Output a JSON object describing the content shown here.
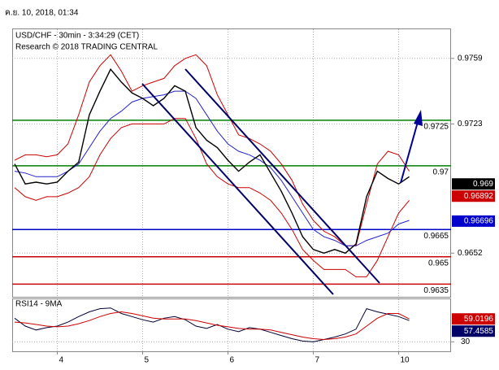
{
  "header": {
    "timestamp": "ค.ย. 10, 2018, 01:34"
  },
  "chart_data": [
    {
      "type": "line",
      "title": "USD/CHF - 30min - 3:34:29 (CET)",
      "subtitle": "Research © 2018 TRADING CENTRAL",
      "ylim": [
        0.9628,
        0.9775
      ],
      "yticks": [
        0.9759,
        0.9723,
        0.9652
      ],
      "grid": true,
      "series": [
        {
          "color": "#cc0000",
          "values": [
            0.9703,
            0.9706,
            0.9706,
            0.9705,
            0.9706,
            0.9712,
            0.9728,
            0.9746,
            0.9755,
            0.9761,
            0.9752,
            0.9741,
            0.9744,
            0.9746,
            0.9748,
            0.9755,
            0.9759,
            0.9761,
            0.9755,
            0.9739,
            0.9728,
            0.9717,
            0.9715,
            0.9712,
            0.9708,
            0.9701,
            0.9692,
            0.9679,
            0.967,
            0.9664,
            0.9661,
            0.9656,
            0.9656,
            0.9679,
            0.9701,
            0.9708,
            0.9706,
            0.9697
          ]
        },
        {
          "color": "#cc0000",
          "values": [
            0.9688,
            0.9683,
            0.9681,
            0.9683,
            0.9683,
            0.9685,
            0.9688,
            0.9694,
            0.9706,
            0.9715,
            0.9721,
            0.9723,
            0.9723,
            0.9723,
            0.9723,
            0.9726,
            0.9726,
            0.9715,
            0.9701,
            0.9694,
            0.969,
            0.9688,
            0.9688,
            0.9685,
            0.9681,
            0.9674,
            0.9665,
            0.9654,
            0.9648,
            0.9643,
            0.9643,
            0.9643,
            0.9639,
            0.9639,
            0.9648,
            0.9661,
            0.9674,
            0.9681
          ]
        },
        {
          "color": "#2222cc",
          "values": [
            0.9697,
            0.9696,
            0.9694,
            0.9694,
            0.9694,
            0.9697,
            0.9701,
            0.971,
            0.9719,
            0.9726,
            0.973,
            0.9735,
            0.9737,
            0.9738,
            0.9739,
            0.9741,
            0.9741,
            0.9737,
            0.9728,
            0.9719,
            0.9712,
            0.9708,
            0.9706,
            0.9703,
            0.9699,
            0.9692,
            0.9683,
            0.9674,
            0.9665,
            0.9661,
            0.9659,
            0.9656,
            0.9656,
            0.9659,
            0.9661,
            0.9663,
            0.9668,
            0.967
          ]
        },
        {
          "color": "#000000",
          "values": [
            0.9701,
            0.969,
            0.9691,
            0.969,
            0.9691,
            0.9697,
            0.9702,
            0.9728,
            0.9741,
            0.9753,
            0.9746,
            0.974,
            0.9737,
            0.9733,
            0.9737,
            0.9744,
            0.9741,
            0.9721,
            0.9714,
            0.971,
            0.9703,
            0.9697,
            0.9702,
            0.9706,
            0.9696,
            0.9686,
            0.9674,
            0.9661,
            0.9654,
            0.9652,
            0.9654,
            0.9652,
            0.9657,
            0.9683,
            0.9697,
            0.9693,
            0.969,
            0.9694
          ]
        }
      ],
      "levels": [
        {
          "value": 0.9725,
          "color": "#008000"
        },
        {
          "value": 0.97,
          "color": "#008000"
        },
        {
          "value": 0.9665,
          "color": "#0000cc"
        },
        {
          "value": 0.965,
          "color": "#cc0000"
        },
        {
          "value": 0.9635,
          "color": "#cc0000"
        }
      ],
      "last_values": [
        {
          "value": 0.969,
          "color": "#000000"
        },
        {
          "value": 0.96892,
          "color": "#cc0000"
        },
        {
          "value": 0.96696,
          "color": "#0000cc"
        }
      ]
    },
    {
      "type": "line",
      "title": "RSI14 - 9MA",
      "ylim": [
        18,
        84
      ],
      "yticks": [
        30
      ],
      "grid": true,
      "categories": [
        null,
        null,
        null,
        null,
        "4",
        null,
        null,
        null,
        null,
        null,
        null,
        null,
        "5",
        null,
        null,
        null,
        null,
        null,
        null,
        null,
        "6",
        null,
        null,
        null,
        null,
        null,
        null,
        null,
        "7",
        null,
        null,
        null,
        null,
        null,
        null,
        null,
        "10",
        null
      ],
      "series": [
        {
          "color": "#000033",
          "values": [
            60,
            50,
            45,
            48,
            50,
            55,
            62,
            68,
            72,
            73,
            66,
            62,
            58,
            55,
            60,
            62,
            58,
            50,
            47,
            52,
            46,
            43,
            48,
            46,
            42,
            38,
            34,
            31,
            30,
            33,
            36,
            40,
            46,
            72,
            68,
            65,
            62,
            57
          ]
        },
        {
          "color": "#cc0000",
          "values": [
            55,
            54,
            52,
            50,
            49,
            50,
            53,
            57,
            62,
            66,
            68,
            66,
            63,
            60,
            59,
            59,
            59,
            57,
            54,
            51,
            49,
            47,
            46,
            46,
            45,
            42,
            39,
            36,
            34,
            33,
            34,
            36,
            40,
            50,
            60,
            66,
            66,
            59
          ]
        }
      ],
      "last_values": [
        {
          "value": 59.0196,
          "color": "#cc0000"
        },
        {
          "value": 57.4585,
          "color": "#000066"
        }
      ]
    }
  ]
}
